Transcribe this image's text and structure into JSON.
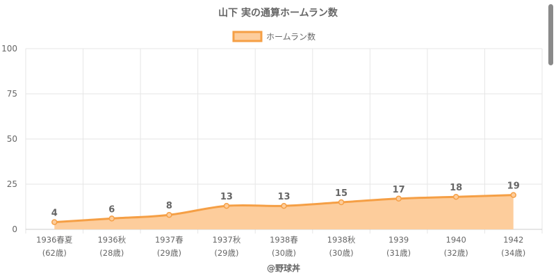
{
  "chart_data": {
    "type": "area",
    "title": "山下 実の通算ホームラン数",
    "categories": [
      [
        "1936春夏",
        "(62歳)"
      ],
      [
        "1936秋",
        "(28歳)"
      ],
      [
        "1937春",
        "(29歳)"
      ],
      [
        "1937秋",
        "(29歳)"
      ],
      [
        "1938春",
        "(30歳)"
      ],
      [
        "1938秋",
        "(30歳)"
      ],
      [
        "1939",
        "(31歳)"
      ],
      [
        "1940",
        "(32歳)"
      ],
      [
        "1942",
        "(34歳)"
      ]
    ],
    "series": [
      {
        "name": "ホームラン数",
        "values": [
          4,
          6,
          8,
          13,
          13,
          15,
          17,
          18,
          19
        ]
      }
    ],
    "ylim": [
      0,
      100
    ],
    "yticks": [
      0,
      25,
      50,
      75,
      100
    ],
    "grid": true,
    "legend_position": "top-center",
    "colors": {
      "line": "#f59f45",
      "fill": "#fdcd9c",
      "grid": "#e6e6e6",
      "text": "#666666"
    },
    "credit": "@野球丼"
  }
}
